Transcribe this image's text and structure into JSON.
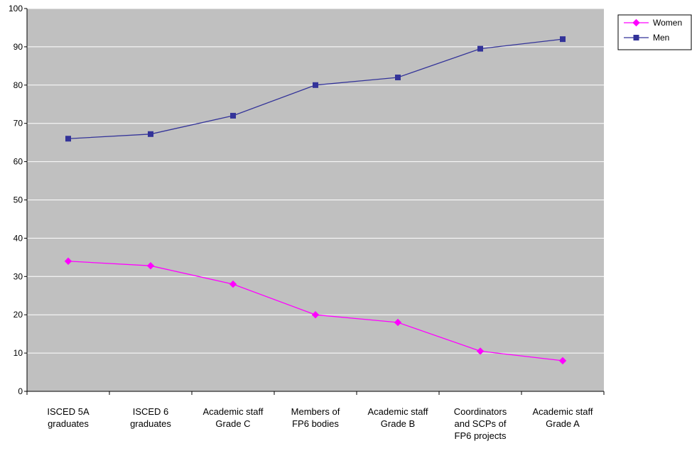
{
  "chart_data": {
    "type": "line",
    "categories": [
      [
        "ISCED 5A",
        "graduates"
      ],
      [
        "ISCED 6",
        "graduates"
      ],
      [
        "Academic staff",
        "Grade C"
      ],
      [
        "Members of",
        "FP6 bodies"
      ],
      [
        "Academic staff",
        "Grade B"
      ],
      [
        "Coordinators",
        "and SCPs of",
        "FP6 projects"
      ],
      [
        "Academic staff",
        "Grade A"
      ]
    ],
    "series": [
      {
        "name": "Women",
        "color": "#ff00ff",
        "marker": "diamond",
        "values": [
          34,
          32.8,
          28,
          20,
          18,
          10.5,
          8
        ]
      },
      {
        "name": "Men",
        "color": "#333399",
        "marker": "square",
        "values": [
          66,
          67.2,
          72,
          80,
          82,
          89.5,
          92
        ]
      }
    ],
    "ylim": [
      0,
      100
    ],
    "yticks": [
      0,
      10,
      20,
      30,
      40,
      50,
      60,
      70,
      80,
      90,
      100
    ],
    "grid": true,
    "plot_background": "#c0c0c0",
    "gridline_color": "#ffffff",
    "legend_position": "top-right"
  }
}
